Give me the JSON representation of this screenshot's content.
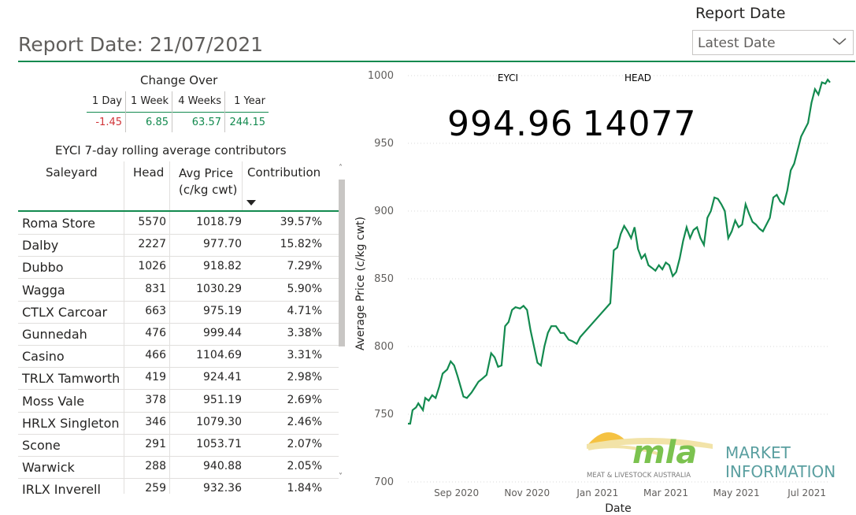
{
  "report_title": "Report Date: 21/07/2021",
  "report_date_filter": {
    "label": "Report Date",
    "selected": "Latest Date"
  },
  "change_over": {
    "title": "Change Over",
    "periods": [
      {
        "label": "1 Day",
        "value": "-1.45"
      },
      {
        "label": "1 Week",
        "value": "6.85"
      },
      {
        "label": "4 Weeks",
        "value": "63.57"
      },
      {
        "label": "1 Year",
        "value": "244.15"
      }
    ],
    "negative_color": "#d13438",
    "positive_color": "#138a4f"
  },
  "contributors": {
    "title": "EYCI 7-day rolling average contributors",
    "columns": [
      "Saleyard",
      "Head",
      "Avg Price (c/kg cwt)",
      "Contribution"
    ],
    "rows": [
      {
        "saleyard": "Roma Store",
        "head": "5570",
        "avg_price": "1018.79",
        "contribution": "39.57%"
      },
      {
        "saleyard": "Dalby",
        "head": "2227",
        "avg_price": "977.70",
        "contribution": "15.82%"
      },
      {
        "saleyard": "Dubbo",
        "head": "1026",
        "avg_price": "918.82",
        "contribution": "7.29%"
      },
      {
        "saleyard": "Wagga",
        "head": "831",
        "avg_price": "1030.29",
        "contribution": "5.90%"
      },
      {
        "saleyard": "CTLX Carcoar",
        "head": "663",
        "avg_price": "975.19",
        "contribution": "4.71%"
      },
      {
        "saleyard": "Gunnedah",
        "head": "476",
        "avg_price": "999.44",
        "contribution": "3.38%"
      },
      {
        "saleyard": "Casino",
        "head": "466",
        "avg_price": "1104.69",
        "contribution": "3.31%"
      },
      {
        "saleyard": "TRLX Tamworth",
        "head": "419",
        "avg_price": "924.41",
        "contribution": "2.98%"
      },
      {
        "saleyard": "Moss Vale",
        "head": "378",
        "avg_price": "951.19",
        "contribution": "2.69%"
      },
      {
        "saleyard": "HRLX Singleton",
        "head": "346",
        "avg_price": "1079.30",
        "contribution": "2.46%"
      },
      {
        "saleyard": "Scone",
        "head": "291",
        "avg_price": "1053.71",
        "contribution": "2.07%"
      },
      {
        "saleyard": "Warwick",
        "head": "288",
        "avg_price": "940.88",
        "contribution": "2.05%"
      },
      {
        "saleyard": "IRLX Inverell",
        "head": "259",
        "avg_price": "932.36",
        "contribution": "1.84%"
      }
    ]
  },
  "kpis": {
    "eyci_label": "EYCI",
    "eyci_value": "994.96",
    "head_label": "HEAD",
    "head_value": "14077"
  },
  "logo": {
    "brand": "mla",
    "brand_sub": "MEAT & LIVESTOCK AUSTRALIA",
    "line1": "MARKET",
    "line2": "INFORMATION"
  },
  "chart_data": {
    "type": "line",
    "xlabel": "Date",
    "ylabel": "Average Price (c/kg cwt)",
    "ylim": [
      700,
      1000
    ],
    "yticks": [
      700,
      750,
      800,
      850,
      900,
      950,
      1000
    ],
    "xlim": [
      "2020-07-21",
      "2021-07-21"
    ],
    "xticks": [
      {
        "date": "2020-09-01",
        "label": "Sep 2020"
      },
      {
        "date": "2020-11-01",
        "label": "Nov 2020"
      },
      {
        "date": "2021-01-01",
        "label": "Jan 2021"
      },
      {
        "date": "2021-03-01",
        "label": "Mar 2021"
      },
      {
        "date": "2021-05-01",
        "label": "May 2021"
      },
      {
        "date": "2021-07-01",
        "label": "Jul 2021"
      }
    ],
    "grid": true,
    "line_color": "#138a4f",
    "series": [
      {
        "x": [
          "2020-07-21",
          "2020-07-23",
          "2020-07-25",
          "2020-07-28",
          "2020-07-30",
          "2020-08-03",
          "2020-08-05",
          "2020-08-08",
          "2020-08-11",
          "2020-08-14",
          "2020-08-17",
          "2020-08-20",
          "2020-08-24",
          "2020-08-27",
          "2020-08-30",
          "2020-09-02",
          "2020-09-04",
          "2020-09-07",
          "2020-09-10",
          "2020-09-14",
          "2020-09-17",
          "2020-09-20",
          "2020-09-23",
          "2020-09-27",
          "2020-10-01",
          "2020-10-04",
          "2020-10-07",
          "2020-10-10",
          "2020-10-13",
          "2020-10-16",
          "2020-10-19",
          "2020-10-22",
          "2020-10-26",
          "2020-10-29",
          "2020-11-01",
          "2020-11-04",
          "2020-11-07",
          "2020-11-10",
          "2020-11-13",
          "2020-11-16",
          "2020-11-19",
          "2020-11-22",
          "2020-11-26",
          "2020-11-30",
          "2020-12-03",
          "2020-12-07",
          "2020-12-10",
          "2020-12-14",
          "2020-12-17",
          "2021-01-12",
          "2021-01-15",
          "2021-01-18",
          "2021-01-21",
          "2021-01-24",
          "2021-01-27",
          "2021-01-30",
          "2021-02-02",
          "2021-02-05",
          "2021-02-08",
          "2021-02-11",
          "2021-02-14",
          "2021-02-17",
          "2021-02-20",
          "2021-02-23",
          "2021-02-26",
          "2021-03-01",
          "2021-03-04",
          "2021-03-07",
          "2021-03-10",
          "2021-03-13",
          "2021-03-16",
          "2021-03-19",
          "2021-03-22",
          "2021-03-25",
          "2021-03-28",
          "2021-03-31",
          "2021-04-03",
          "2021-04-06",
          "2021-04-09",
          "2021-04-12",
          "2021-04-15",
          "2021-04-18",
          "2021-04-21",
          "2021-04-24",
          "2021-04-27",
          "2021-04-30",
          "2021-05-03",
          "2021-05-06",
          "2021-05-09",
          "2021-05-12",
          "2021-05-15",
          "2021-05-18",
          "2021-05-21",
          "2021-05-24",
          "2021-05-27",
          "2021-05-30",
          "2021-06-02",
          "2021-06-05",
          "2021-06-08",
          "2021-06-11",
          "2021-06-14",
          "2021-06-17",
          "2021-06-20",
          "2021-06-23",
          "2021-06-26",
          "2021-06-29",
          "2021-07-02",
          "2021-07-05",
          "2021-07-08",
          "2021-07-11",
          "2021-07-14",
          "2021-07-17",
          "2021-07-19",
          "2021-07-21"
        ],
        "y": [
          743,
          743,
          753,
          755,
          758,
          753,
          762,
          760,
          764,
          762,
          770,
          780,
          783,
          789,
          786,
          778,
          772,
          763,
          762,
          766,
          770,
          774,
          776,
          779,
          795,
          792,
          785,
          786,
          815,
          818,
          827,
          829,
          828,
          830,
          827,
          812,
          800,
          788,
          786,
          800,
          810,
          815,
          815,
          810,
          810,
          805,
          804,
          802,
          807,
          832,
          871,
          873,
          883,
          889,
          885,
          880,
          888,
          872,
          865,
          868,
          860,
          858,
          856,
          860,
          857,
          862,
          860,
          852,
          855,
          865,
          878,
          888,
          880,
          886,
          888,
          880,
          875,
          895,
          900,
          910,
          909,
          905,
          900,
          880,
          885,
          893,
          888,
          890,
          905,
          898,
          892,
          890,
          887,
          885,
          890,
          895,
          910,
          912,
          907,
          905,
          915,
          930,
          935,
          945,
          955,
          960,
          965,
          980,
          990,
          986,
          995,
          994,
          997,
          994.96
        ]
      }
    ]
  }
}
